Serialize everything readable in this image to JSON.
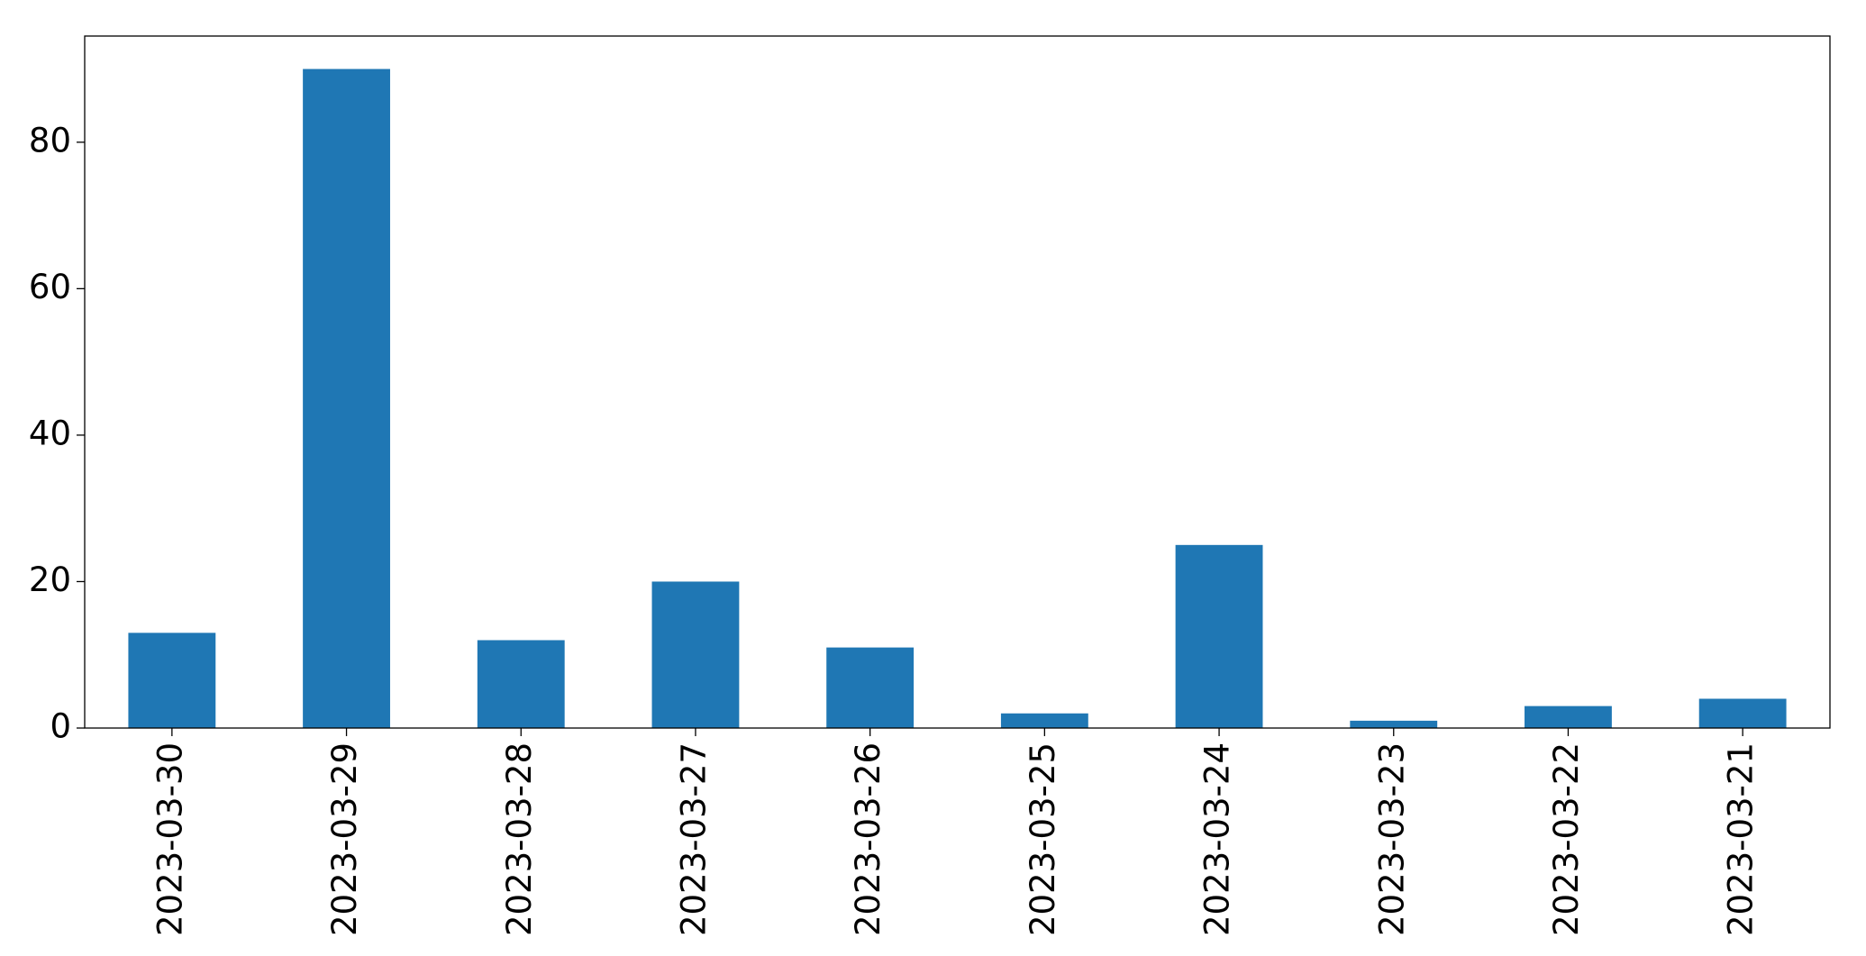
{
  "chart_data": {
    "type": "bar",
    "categories": [
      "2023-03-30",
      "2023-03-29",
      "2023-03-28",
      "2023-03-27",
      "2023-03-26",
      "2023-03-25",
      "2023-03-24",
      "2023-03-23",
      "2023-03-22",
      "2023-03-21"
    ],
    "values": [
      13,
      90,
      12,
      20,
      11,
      2,
      25,
      1,
      3,
      4
    ],
    "color": "#1f77b4",
    "ylim": [
      0,
      94.5
    ],
    "yticks": [
      0,
      20,
      40,
      60,
      80
    ],
    "grid": false
  }
}
